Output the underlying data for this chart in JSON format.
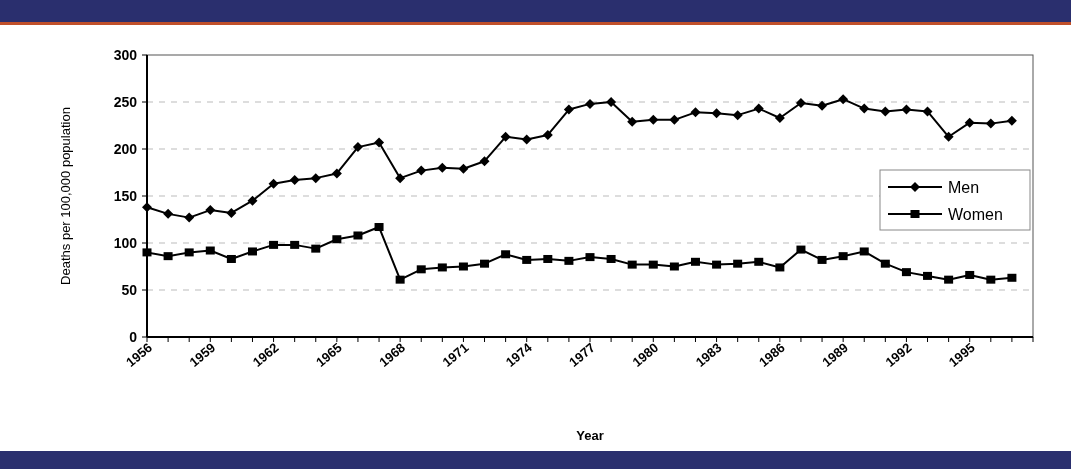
{
  "chart_data": {
    "type": "line",
    "xlabel": "Year",
    "ylabel": "Deaths per 100,000 population",
    "x": [
      1956,
      1957,
      1958,
      1959,
      1960,
      1961,
      1962,
      1963,
      1964,
      1965,
      1966,
      1967,
      1968,
      1969,
      1970,
      1971,
      1972,
      1973,
      1974,
      1975,
      1976,
      1977,
      1978,
      1979,
      1980,
      1981,
      1982,
      1983,
      1984,
      1985,
      1986,
      1987,
      1988,
      1989,
      1990,
      1991,
      1992,
      1993,
      1994,
      1995,
      1996,
      1997
    ],
    "series": [
      {
        "name": "Men",
        "color": "#000000",
        "marker": "diamond",
        "values": [
          138,
          131,
          127,
          135,
          132,
          145,
          163,
          167,
          169,
          174,
          202,
          207,
          169,
          177,
          180,
          179,
          187,
          213,
          210,
          215,
          242,
          248,
          250,
          229,
          231,
          231,
          239,
          238,
          236,
          243,
          233,
          249,
          246,
          253,
          243,
          240,
          242,
          240,
          213,
          228,
          227,
          230
        ]
      },
      {
        "name": "Women",
        "color": "#000000",
        "marker": "square",
        "values": [
          90,
          86,
          90,
          92,
          83,
          91,
          98,
          98,
          94,
          104,
          108,
          117,
          61,
          72,
          74,
          75,
          78,
          88,
          82,
          83,
          81,
          85,
          83,
          77,
          77,
          75,
          80,
          77,
          78,
          80,
          74,
          93,
          82,
          86,
          91,
          78,
          69,
          65,
          61,
          66,
          61,
          63
        ]
      }
    ],
    "xlim": [
      1956,
      1998
    ],
    "xticks": [
      1956,
      {
        "value": 1957,
        "label": null
      },
      {
        "value": 1958,
        "label": null
      },
      1959,
      {
        "value": 1960,
        "label": null
      },
      {
        "value": 1961,
        "label": null
      },
      1962,
      {
        "value": 1963,
        "label": null
      },
      {
        "value": 1964,
        "label": null
      },
      1965,
      {
        "value": 1966,
        "label": null
      },
      {
        "value": 1967,
        "label": null
      },
      1968,
      {
        "value": 1969,
        "label": null
      },
      {
        "value": 1970,
        "label": null
      },
      1971,
      {
        "value": 1972,
        "label": null
      },
      {
        "value": 1973,
        "label": null
      },
      1974,
      {
        "value": 1975,
        "label": null
      },
      {
        "value": 1976,
        "label": null
      },
      1977,
      {
        "value": 1978,
        "label": null
      },
      {
        "value": 1979,
        "label": null
      },
      1980,
      {
        "value": 1981,
        "label": null
      },
      {
        "value": 1982,
        "label": null
      },
      1983,
      {
        "value": 1984,
        "label": null
      },
      {
        "value": 1985,
        "label": null
      },
      1986,
      {
        "value": 1987,
        "label": null
      },
      {
        "value": 1988,
        "label": null
      },
      1989,
      {
        "value": 1990,
        "label": null
      },
      {
        "value": 1991,
        "label": null
      },
      1992,
      {
        "value": 1993,
        "label": null
      },
      {
        "value": 1994,
        "label": null
      },
      1995,
      {
        "value": 1996,
        "label": null
      },
      {
        "value": 1997,
        "label": null
      },
      {
        "value": 1998,
        "label": null
      }
    ],
    "ylim": [
      0,
      300
    ],
    "yticks": [
      0,
      50,
      100,
      150,
      200,
      250,
      300
    ],
    "grid": "y",
    "legend": "right",
    "line_style": "solid"
  }
}
